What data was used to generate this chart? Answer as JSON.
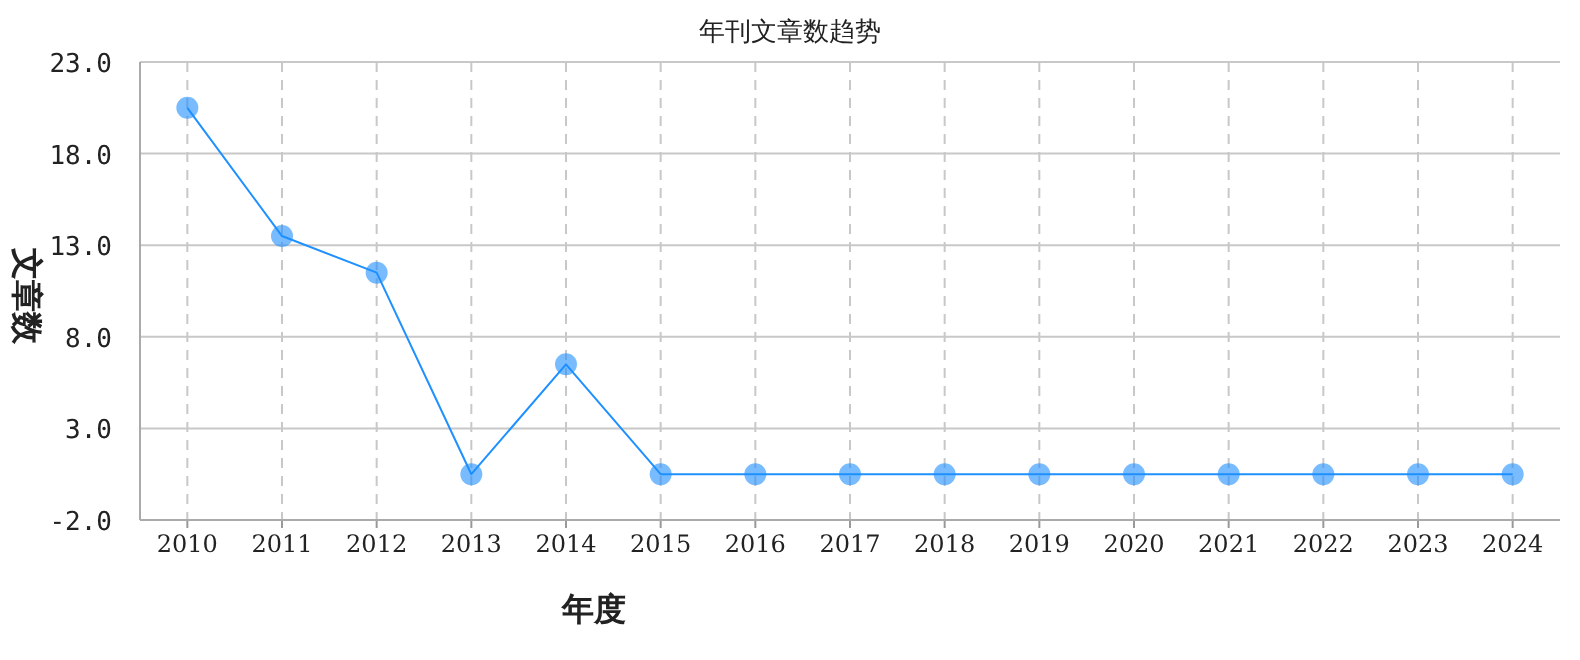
{
  "chart_data": {
    "type": "line",
    "title": "年刊文章数趋势",
    "xlabel": "年度",
    "ylabel": "文章数",
    "categories": [
      "2010",
      "2011",
      "2012",
      "2013",
      "2014",
      "2015",
      "2016",
      "2017",
      "2018",
      "2019",
      "2020",
      "2021",
      "2022",
      "2023",
      "2024"
    ],
    "series": [
      {
        "color": "#1e90ff",
        "values": [
          20.5,
          13.5,
          11.5,
          0.5,
          6.5,
          0.5,
          0.5,
          0.5,
          0.5,
          0.5,
          0.5,
          0.5,
          0.5,
          0.5,
          0.5
        ]
      }
    ],
    "ylim": [
      -2,
      23
    ],
    "yticks": [
      {
        "value": -2,
        "label": "-2.0"
      },
      {
        "value": 3,
        "label": "3.0"
      },
      {
        "value": 8,
        "label": "8.0"
      },
      {
        "value": 13,
        "label": "13.0"
      },
      {
        "value": 18,
        "label": "18.0"
      },
      {
        "value": 23,
        "label": "23.0"
      }
    ],
    "grid": true,
    "marker": "circle",
    "line_style": "solid"
  }
}
